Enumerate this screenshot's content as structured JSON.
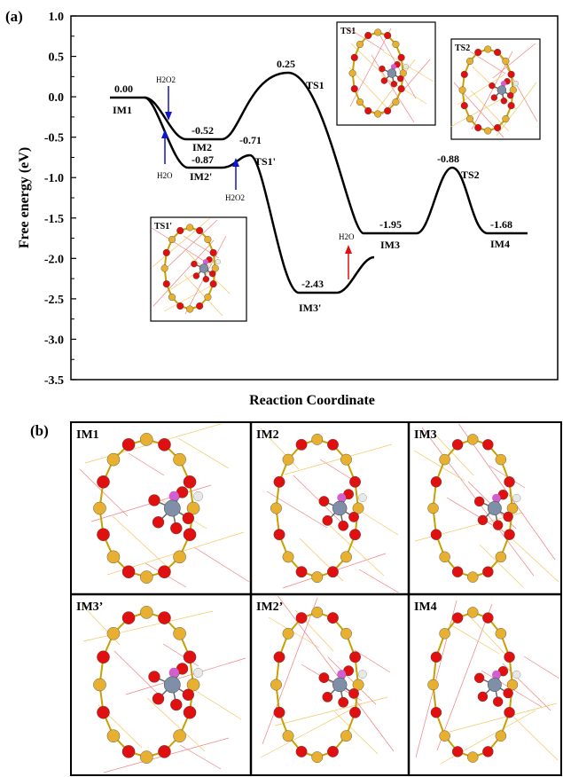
{
  "panel_a_letter": "(a)",
  "panel_b_letter": "(b)",
  "chart_data": {
    "type": "line",
    "title": "",
    "xlabel": "Reaction Coordinate",
    "ylabel": "Free energy (eV)",
    "ylim": [
      -3.5,
      1.0
    ],
    "yticks": [
      "1.0",
      "0.5",
      "0.0",
      "-0.5",
      "-1.0",
      "-1.5",
      "-2.0",
      "-2.5",
      "-3.0",
      "-3.5"
    ],
    "ytick_values": [
      1.0,
      0.5,
      0.0,
      -0.5,
      -1.0,
      -1.5,
      -2.0,
      -2.5,
      -3.0,
      -3.5
    ],
    "levels": [
      {
        "id": "IM1",
        "label": "IM1",
        "value": 0.0,
        "value_text": "0.00"
      },
      {
        "id": "IM2",
        "label": "IM2",
        "value": -0.52,
        "value_text": "-0.52"
      },
      {
        "id": "TS1",
        "label": "TS1",
        "value": 0.25,
        "value_text": "0.25"
      },
      {
        "id": "IM2p",
        "label": "IM2'",
        "value": -0.87,
        "value_text": "-0.87"
      },
      {
        "id": "TS1p",
        "label": "TS1'",
        "value": -0.71,
        "value_text": "-0.71"
      },
      {
        "id": "IM3p",
        "label": "IM3'",
        "value": -2.43,
        "value_text": "-2.43"
      },
      {
        "id": "IM3",
        "label": "IM3",
        "value": -1.95,
        "value_text": "-1.95"
      },
      {
        "id": "TS2",
        "label": "TS2",
        "value": -0.88,
        "value_text": "-0.88"
      },
      {
        "id": "IM4",
        "label": "IM4",
        "value": -1.68,
        "value_text": "-1.68"
      }
    ],
    "annotations": [
      {
        "id": "h2o2_a",
        "text": "H2O2",
        "arrow_color": "#1414c8"
      },
      {
        "id": "h2o_a",
        "text": "H2O",
        "arrow_color": "#1414c8"
      },
      {
        "id": "h2o2_b",
        "text": "H2O2",
        "arrow_color": "#1414c8"
      },
      {
        "id": "h2o_b",
        "text": "H2O",
        "arrow_color": "#e01010"
      }
    ],
    "insets": [
      "TS1",
      "TS2",
      "TS1'"
    ]
  },
  "structures": [
    "IM1",
    "IM2",
    "IM3",
    "IM3’",
    "IM2’",
    "IM4"
  ],
  "colors": {
    "oxygen": "#e01010",
    "silicon": "#e8b030",
    "metal": "#7f8fa8",
    "hydrogen": "#e8e8e8",
    "dopant": "#d060d0"
  }
}
